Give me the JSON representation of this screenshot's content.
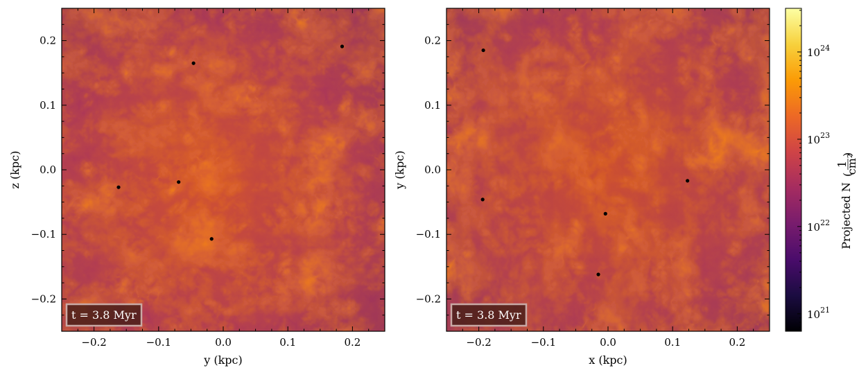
{
  "colors": {
    "colormap": [
      "#000004",
      "#1b0c41",
      "#4a0c6b",
      "#781c6d",
      "#a52c60",
      "#cf4446",
      "#ed6925",
      "#fb9b06",
      "#f7d13d",
      "#fcffa4"
    ],
    "sink_marker": "#000000",
    "time_box_bg": "#4a1e1a",
    "time_box_edge": "#c9a9a5"
  },
  "chart_data": [
    {
      "type": "heatmap",
      "title": "",
      "xlabel": "y  (kpc)",
      "ylabel": "z  (kpc)",
      "xlim": [
        -0.25,
        0.25
      ],
      "ylim": [
        -0.25,
        0.25
      ],
      "xticks": [
        -0.2,
        -0.1,
        0.0,
        0.1,
        0.2
      ],
      "xtick_labels": [
        "−0.2",
        "−0.1",
        "0.0",
        "0.1",
        "0.2"
      ],
      "yticks": [
        -0.2,
        -0.1,
        0.0,
        0.1,
        0.2
      ],
      "ytick_labels": [
        "−0.2",
        "−0.1",
        "0.0",
        "0.1",
        "0.2"
      ],
      "time_label": "t = 3.8 Myr",
      "quantity": "projected column density",
      "log10_range": [
        21.7,
        24.2
      ],
      "sink_particles": [
        {
          "x": -0.046,
          "y": 0.165
        },
        {
          "x": 0.184,
          "y": 0.191
        },
        {
          "x": -0.162,
          "y": -0.027
        },
        {
          "x": -0.069,
          "y": -0.019
        },
        {
          "x": -0.018,
          "y": -0.107
        }
      ]
    },
    {
      "type": "heatmap",
      "title": "",
      "xlabel": "x  (kpc)",
      "ylabel": "y  (kpc)",
      "xlim": [
        -0.25,
        0.25
      ],
      "ylim": [
        -0.25,
        0.25
      ],
      "xticks": [
        -0.2,
        -0.1,
        0.0,
        0.1,
        0.2
      ],
      "xtick_labels": [
        "−0.2",
        "−0.1",
        "0.0",
        "0.1",
        "0.2"
      ],
      "yticks": [
        -0.2,
        -0.1,
        0.0,
        0.1,
        0.2
      ],
      "ytick_labels": [
        "−0.2",
        "−0.1",
        "0.0",
        "0.1",
        "0.2"
      ],
      "time_label": "t = 3.8 Myr",
      "quantity": "projected column density",
      "log10_range": [
        21.7,
        24.2
      ],
      "sink_particles": [
        {
          "x": -0.193,
          "y": 0.185
        },
        {
          "x": -0.194,
          "y": -0.046
        },
        {
          "x": -0.004,
          "y": -0.068
        },
        {
          "x": 0.123,
          "y": -0.017
        },
        {
          "x": -0.015,
          "y": -0.162
        }
      ]
    }
  ],
  "colorbar": {
    "label_main": "Projected N",
    "label_unit_num": "1",
    "label_unit_den": "cm²",
    "scale": "log",
    "range": [
      20.8,
      24.5
    ],
    "ticks": [
      {
        "exp": 21,
        "base": "10",
        "power": "21"
      },
      {
        "exp": 22,
        "base": "10",
        "power": "22"
      },
      {
        "exp": 23,
        "base": "10",
        "power": "23"
      },
      {
        "exp": 24,
        "base": "10",
        "power": "24"
      }
    ]
  }
}
